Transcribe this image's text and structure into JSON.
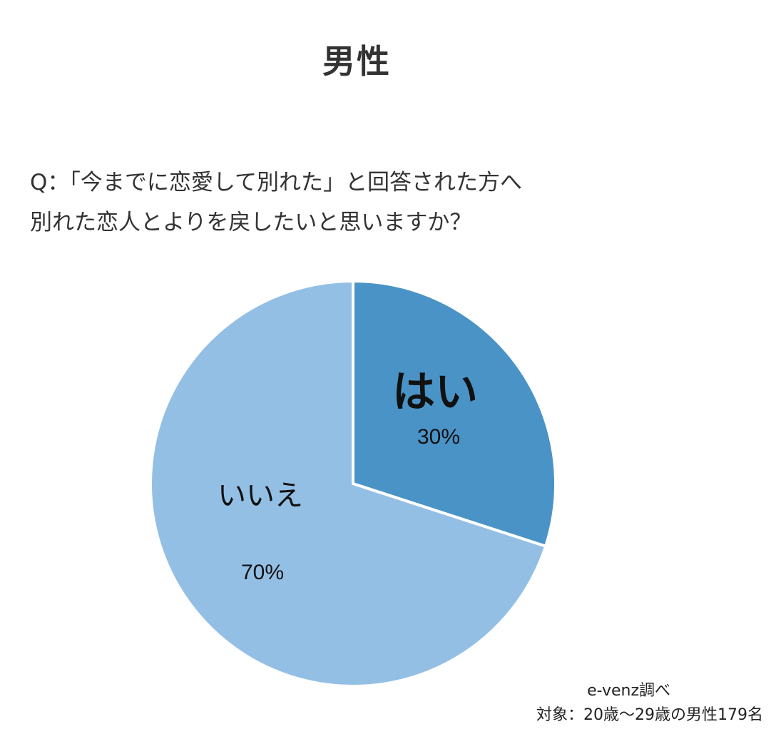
{
  "header": {
    "title": "男性"
  },
  "question": {
    "line1": "Q：「今までに恋愛して別れた」と回答された方へ",
    "line2": "別れた恋人とよりを戻したいと思いますか？"
  },
  "chart_data": {
    "type": "pie",
    "slices": [
      {
        "label": "はい",
        "value": 30,
        "value_label": "30%",
        "color": "#4a93c6"
      },
      {
        "label": "いいえ",
        "value": 70,
        "value_label": "70%",
        "color": "#94bfe5"
      }
    ],
    "start": "12 o'clock",
    "direction": "clockwise"
  },
  "credit": {
    "source": "e-venz調べ",
    "target": "対象：20歳〜29歳の男性179名"
  }
}
